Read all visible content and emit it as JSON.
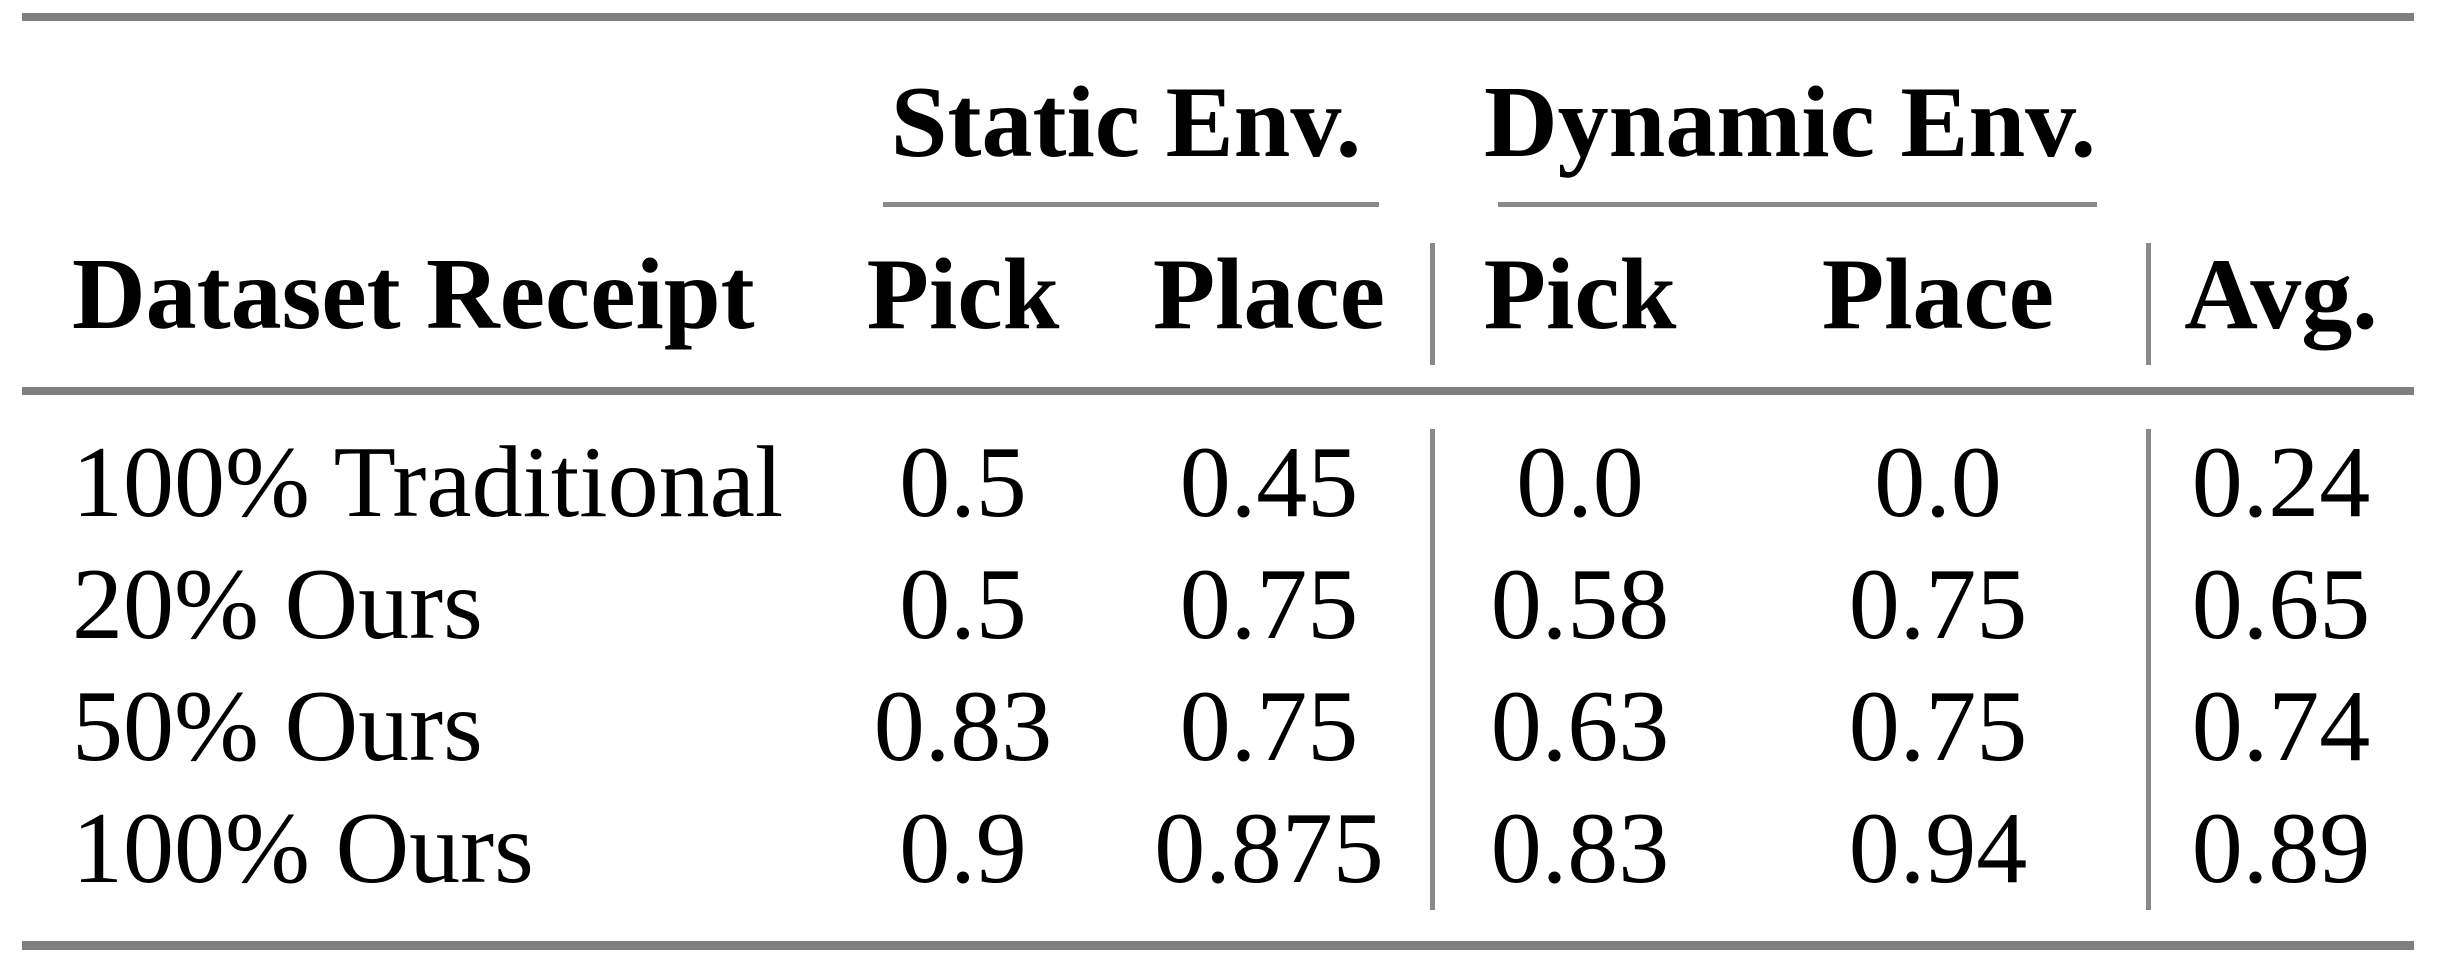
{
  "colors": {
    "background": "#ffffff",
    "text": "#000000",
    "rule_thick": "#7f7f7f",
    "rule_thin": "#8a8a8a"
  },
  "table": {
    "groups": [
      {
        "label": "Static Env.",
        "columns": [
          "Pick",
          "Place"
        ]
      },
      {
        "label": "Dynamic Env.",
        "columns": [
          "Pick",
          "Place"
        ]
      }
    ],
    "row_header_label": "Dataset Receipt",
    "avg_label": "Avg.",
    "rows": [
      {
        "label": "100% Traditional",
        "values": [
          "0.5",
          "0.45",
          "0.0",
          "0.0",
          "0.24"
        ]
      },
      {
        "label": "20% Ours",
        "values": [
          "0.5",
          "0.75",
          "0.58",
          "0.75",
          "0.65"
        ]
      },
      {
        "label": "50% Ours",
        "values": [
          "0.83",
          "0.75",
          "0.63",
          "0.75",
          "0.74"
        ]
      },
      {
        "label": "100% Ours",
        "values": [
          "0.9",
          "0.875",
          "0.83",
          "0.94",
          "0.89"
        ]
      }
    ]
  },
  "chart_data": {
    "type": "table",
    "title": "",
    "columns": [
      "Dataset Receipt",
      "Static Env. Pick",
      "Static Env. Place",
      "Dynamic Env. Pick",
      "Dynamic Env. Place",
      "Avg."
    ],
    "rows": [
      [
        "100% Traditional",
        0.5,
        0.45,
        0.0,
        0.0,
        0.24
      ],
      [
        "20% Ours",
        0.5,
        0.75,
        0.58,
        0.75,
        0.65
      ],
      [
        "50% Ours",
        0.83,
        0.75,
        0.63,
        0.75,
        0.74
      ],
      [
        "100% Ours",
        0.9,
        0.875,
        0.83,
        0.94,
        0.89
      ]
    ]
  }
}
